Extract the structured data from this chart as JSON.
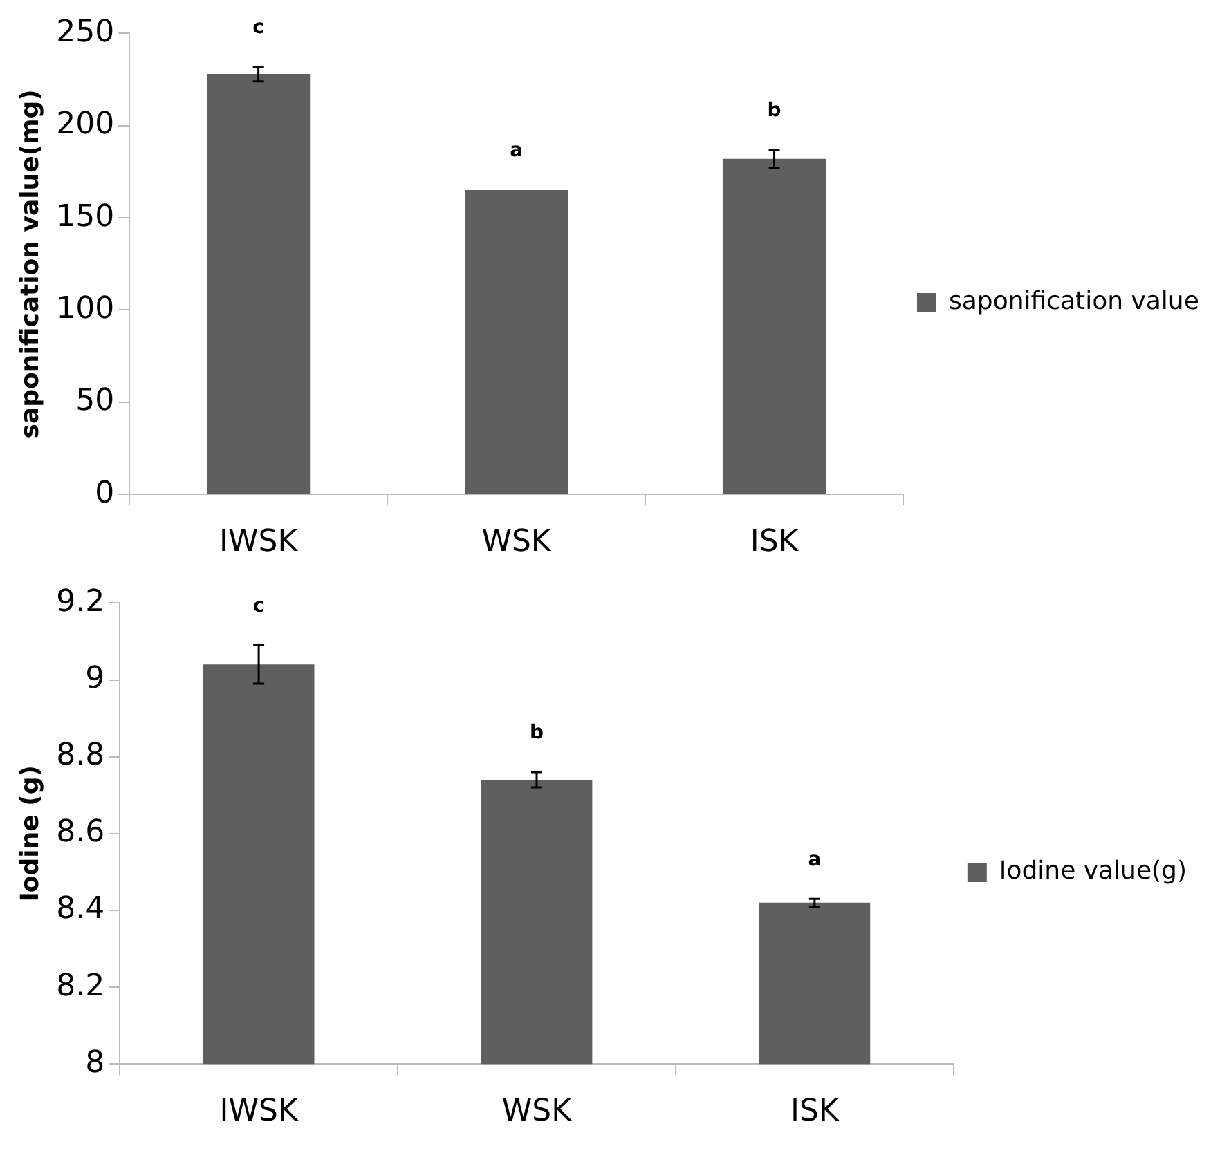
{
  "chart_data": [
    {
      "type": "bar",
      "ylabel": "saponification value(mg)",
      "categories": [
        "IWSK",
        "WSK",
        "ISK"
      ],
      "series": [
        {
          "name": "saponification value",
          "color": "#5f5f5f",
          "values": [
            228,
            165,
            182
          ],
          "errors": [
            4,
            null,
            5
          ]
        }
      ],
      "ylim": [
        0,
        250
      ],
      "yticks": [
        0,
        50,
        100,
        150,
        200,
        250
      ],
      "grid": false,
      "legend": "right",
      "annotations": [
        "c",
        "a",
        "b"
      ]
    },
    {
      "type": "bar",
      "ylabel": "Iodine (g)",
      "categories": [
        "IWSK",
        "WSK",
        "ISK"
      ],
      "series": [
        {
          "name": "Iodine value(g)",
          "color": "#5f5f5f",
          "values": [
            9.04,
            8.74,
            8.42
          ],
          "errors": [
            0.05,
            0.02,
            0.01
          ]
        }
      ],
      "ylim": [
        8,
        9.2
      ],
      "yticks": [
        8,
        8.2,
        8.4,
        8.6,
        8.8,
        9,
        9.2
      ],
      "grid": false,
      "legend": "right",
      "annotations": [
        "c",
        "b",
        "a"
      ]
    }
  ]
}
